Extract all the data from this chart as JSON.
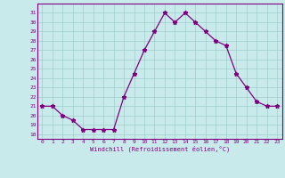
{
  "x": [
    0,
    1,
    2,
    3,
    4,
    5,
    6,
    7,
    8,
    9,
    10,
    11,
    12,
    13,
    14,
    15,
    16,
    17,
    18,
    19,
    20,
    21,
    22,
    23
  ],
  "y": [
    21,
    21,
    20,
    19.5,
    18.5,
    18.5,
    18.5,
    18.5,
    22,
    24.5,
    27,
    29,
    31,
    30,
    31,
    30,
    29,
    28,
    27.5,
    24.5,
    23,
    21.5,
    21,
    21
  ],
  "line_color": "#800080",
  "marker": "*",
  "bg_color": "#c8eaea",
  "grid_color": "#a0cccc",
  "xlabel": "Windchill (Refroidissement éolien,°C)",
  "xlabel_color": "#800080",
  "tick_color": "#800080",
  "spine_color": "#800080",
  "ylim": [
    17.5,
    32
  ],
  "xlim": [
    -0.5,
    23.5
  ],
  "yticks": [
    18,
    19,
    20,
    21,
    22,
    23,
    24,
    25,
    26,
    27,
    28,
    29,
    30,
    31
  ],
  "xticks": [
    0,
    1,
    2,
    3,
    4,
    5,
    6,
    7,
    8,
    9,
    10,
    11,
    12,
    13,
    14,
    15,
    16,
    17,
    18,
    19,
    20,
    21,
    22,
    23
  ]
}
